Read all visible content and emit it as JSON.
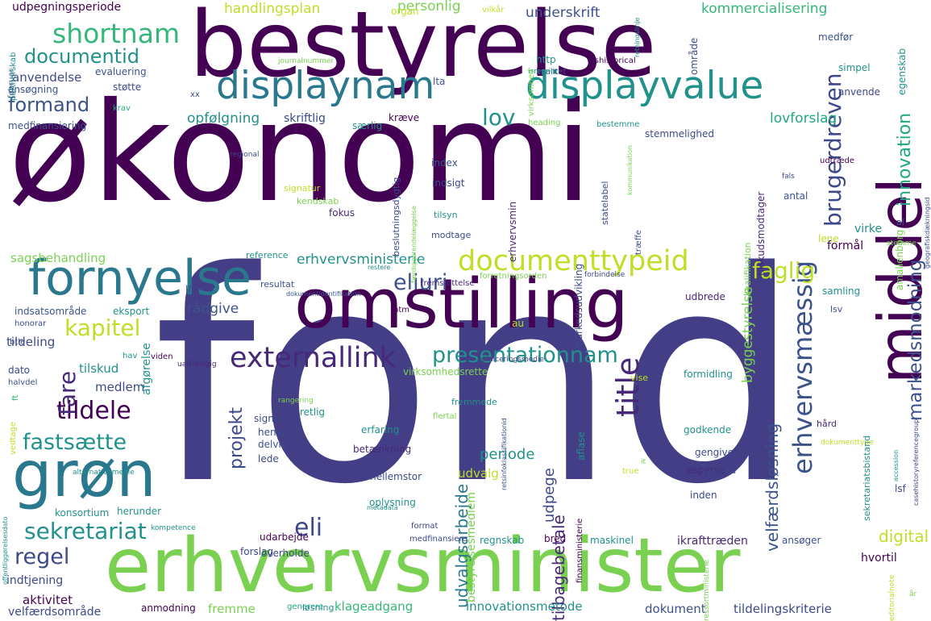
{
  "words": [
    {
      "text": "økonomi",
      "color": "#440154"
    },
    {
      "text": "fond",
      "color": "#433e85"
    },
    {
      "text": "bestyrelse",
      "color": "#440154"
    },
    {
      "text": "erhvervsminister",
      "color": "#7ad151"
    },
    {
      "text": "omstilling",
      "color": "#440154"
    },
    {
      "text": "middel",
      "color": "#440154"
    },
    {
      "text": "fornyelse",
      "color": "#2a788e"
    },
    {
      "text": "displaynam",
      "color": "#2a788e"
    },
    {
      "text": "displayvalue",
      "color": "#21918c"
    },
    {
      "text": "grøn",
      "color": "#2a788e"
    },
    {
      "text": "documenttypeid",
      "color": "#bddf26"
    },
    {
      "text": "erhvervsmæssig",
      "color": "#3b528b"
    },
    {
      "text": "externallink",
      "color": "#482878"
    },
    {
      "text": "presentationnam",
      "color": "#21918c"
    },
    {
      "text": "shortnam",
      "color": "#35b779"
    },
    {
      "text": "documentid",
      "color": "#21918c"
    },
    {
      "text": "kapitel",
      "color": "#bddf26"
    },
    {
      "text": "sekretariat",
      "color": "#21918c"
    },
    {
      "text": "fastsætte",
      "color": "#21918c"
    },
    {
      "text": "tildele",
      "color": "#440154"
    },
    {
      "text": "faglig",
      "color": "#bddf26"
    },
    {
      "text": "title",
      "color": "#482878"
    },
    {
      "text": "brugerdreven",
      "color": "#3e4989"
    },
    {
      "text": "markedsmodning",
      "color": "#3b528b"
    },
    {
      "text": "innovation",
      "color": "#22a884"
    },
    {
      "text": "eliuri",
      "color": "#3b528b"
    },
    {
      "text": "regel",
      "color": "#3e4989"
    },
    {
      "text": "formand",
      "color": "#3b528b"
    },
    {
      "text": "lov",
      "color": "#21918c"
    },
    {
      "text": "projekt",
      "color": "#3e4989"
    },
    {
      "text": "fare",
      "color": "#482878"
    },
    {
      "text": "eli",
      "color": "#3e4989"
    },
    {
      "text": "digital",
      "color": "#bddf26"
    },
    {
      "text": "velfærdsløsning",
      "color": "#3b528b"
    },
    {
      "text": "tilbagebetale",
      "color": "#482878"
    },
    {
      "text": "udvalgsarbejde",
      "color": "#2a788e"
    },
    {
      "text": "periode",
      "color": "#21918c"
    },
    {
      "text": "udpege",
      "color": "#3e4989"
    },
    {
      "text": "byggestyrelse",
      "color": "#7ad151"
    },
    {
      "text": "handlingsplan",
      "color": "#bddf26"
    },
    {
      "text": "personlig",
      "color": "#7ad151"
    },
    {
      "text": "underskrift",
      "color": "#3b528b"
    },
    {
      "text": "kommercialisering",
      "color": "#35b779"
    },
    {
      "text": "opfølgning",
      "color": "#21918c"
    },
    {
      "text": "lovforslag",
      "color": "#22a884"
    },
    {
      "text": "erhvervsministerie",
      "color": "#21918c"
    },
    {
      "text": "sagsbehandling",
      "color": "#7ad151"
    },
    {
      "text": "rådgive",
      "color": "#3b528b"
    },
    {
      "text": "udvalg",
      "color": "#bddf26"
    },
    {
      "text": "tildeling",
      "color": "#3e4989"
    },
    {
      "text": "medlem",
      "color": "#3e4989"
    },
    {
      "text": "tilskud",
      "color": "#21918c"
    },
    {
      "text": "aktivitet",
      "color": "#440154"
    },
    {
      "text": "anvendelse",
      "color": "#3e4989"
    },
    {
      "text": "udpegningsperiode",
      "color": "#440154"
    },
    {
      "text": "fremme",
      "color": "#7ad151"
    },
    {
      "text": "dokument",
      "color": "#3b528b"
    },
    {
      "text": "tildelingskriterie",
      "color": "#3e4989"
    },
    {
      "text": "innovationsmetode",
      "color": "#21918c"
    },
    {
      "text": "klageadgang",
      "color": "#35b779"
    },
    {
      "text": "velfærdsområde",
      "color": "#3e4989"
    },
    {
      "text": "indtjening",
      "color": "#3e4989"
    },
    {
      "text": "anmodning",
      "color": "#440154"
    },
    {
      "text": "forslag",
      "color": "#3e4989"
    },
    {
      "text": "regnskab",
      "color": "#21918c"
    },
    {
      "text": "maskinel",
      "color": "#21918c"
    },
    {
      "text": "ikrafttræden",
      "color": "#482878"
    },
    {
      "text": "ansøger",
      "color": "#3b528b"
    },
    {
      "text": "hvortil",
      "color": "#440154"
    },
    {
      "text": "konsortium",
      "color": "#21918c"
    },
    {
      "text": "herunder",
      "color": "#21918c"
    },
    {
      "text": "udarbejde",
      "color": "#440154"
    },
    {
      "text": "overholde",
      "color": "#3e4989"
    },
    {
      "text": "oplysning",
      "color": "#21918c"
    },
    {
      "text": "mellemstor",
      "color": "#3e4989"
    },
    {
      "text": "betænkning",
      "color": "#482878"
    },
    {
      "text": "erfaring",
      "color": "#21918c"
    },
    {
      "text": "signere",
      "color": "#3e4989"
    },
    {
      "text": "hense",
      "color": "#3e4989"
    },
    {
      "text": "delvis",
      "color": "#3b528b"
    },
    {
      "text": "lede",
      "color": "#3e4989"
    },
    {
      "text": "retlig",
      "color": "#21918c"
    },
    {
      "text": "virksomhedsrette",
      "color": "#7ad151"
    },
    {
      "text": "esperse",
      "color": "#482878"
    },
    {
      "text": "gengive",
      "color": "#3e4989"
    },
    {
      "text": "godkende",
      "color": "#21918c"
    },
    {
      "text": "formidling",
      "color": "#21918c"
    },
    {
      "text": "vise",
      "color": "#bddf26"
    },
    {
      "text": "samling",
      "color": "#21918c"
    },
    {
      "text": "lsv",
      "color": "#3b528b"
    },
    {
      "text": "formål",
      "color": "#440154"
    },
    {
      "text": "udbrede",
      "color": "#482878"
    },
    {
      "text": "htm",
      "color": "#440154"
    },
    {
      "text": "eksport",
      "color": "#21918c"
    },
    {
      "text": "indsatsområde",
      "color": "#3b528b"
    },
    {
      "text": "honorar",
      "color": "#3e4989"
    },
    {
      "text": "btle",
      "color": "#3e4989"
    },
    {
      "text": "hav",
      "color": "#21918c"
    },
    {
      "text": "viden",
      "color": "#440154"
    },
    {
      "text": "dato",
      "color": "#3e4989"
    },
    {
      "text": "halvdel",
      "color": "#3b528b"
    },
    {
      "text": "afgørelse",
      "color": "#21918c"
    },
    {
      "text": "lf",
      "color": "#3b528b"
    },
    {
      "text": "resultat",
      "color": "#3b528b"
    },
    {
      "text": "signatur",
      "color": "#bddf26"
    },
    {
      "text": "kendskab",
      "color": "#7ad151"
    },
    {
      "text": "indsigt",
      "color": "#3e4989"
    },
    {
      "text": "index",
      "color": "#3b528b"
    },
    {
      "text": "fokus",
      "color": "#482878"
    },
    {
      "text": "tilsyn",
      "color": "#21918c"
    },
    {
      "text": "modtage",
      "color": "#3e4989"
    },
    {
      "text": "virke",
      "color": "#21918c"
    },
    {
      "text": "antal",
      "color": "#3b528b"
    },
    {
      "text": "lene",
      "color": "#bddf26"
    },
    {
      "text": "stemmelighed",
      "color": "#3e4989"
    },
    {
      "text": "bestemme",
      "color": "#21918c"
    },
    {
      "text": "heading",
      "color": "#7ad151"
    },
    {
      "text": "særlig",
      "color": "#21918c"
    },
    {
      "text": "kræve",
      "color": "#440154"
    },
    {
      "text": "skriftlig",
      "color": "#3e4989"
    },
    {
      "text": "http",
      "color": "#21918c"
    },
    {
      "text": "kvalitet",
      "color": "#3e4989"
    },
    {
      "text": "lta",
      "color": "#3b528b"
    },
    {
      "text": "støtte",
      "color": "#3e4989"
    },
    {
      "text": "evaluering",
      "color": "#3b528b"
    },
    {
      "text": "ansøgning",
      "color": "#3b528b"
    },
    {
      "text": "krav",
      "color": "#22a884"
    },
    {
      "text": "medfinansiering",
      "color": "#3b528b"
    },
    {
      "text": "organ",
      "color": "#bddf26"
    },
    {
      "text": "vilkår",
      "color": "#bddf26"
    },
    {
      "text": "februar",
      "color": "#3e4989"
    },
    {
      "text": "medfør",
      "color": "#3b528b"
    },
    {
      "text": "simpel",
      "color": "#21918c"
    },
    {
      "text": "anvende",
      "color": "#3e4989"
    },
    {
      "text": "område",
      "color": "#3e4989"
    },
    {
      "text": "xx",
      "color": "#3e4989"
    },
    {
      "text": "ishistorical",
      "color": "#440154"
    },
    {
      "text": "journalnummer",
      "color": "#7ad151"
    },
    {
      "text": "isreprint",
      "color": "#21918c"
    },
    {
      "text": "udtræde",
      "color": "#440154"
    },
    {
      "text": "fals",
      "color": "#3e4989"
    },
    {
      "text": "al",
      "color": "#3b528b"
    },
    {
      "text": "stemme",
      "color": "#7ad151"
    },
    {
      "text": "regional",
      "color": "#3e4989"
    },
    {
      "text": "reference",
      "color": "#21918c"
    },
    {
      "text": "restere",
      "color": "#21918c"
    },
    {
      "text": "forretningsorden",
      "color": "#7ad151"
    },
    {
      "text": "forbindelse",
      "color": "#3e4989"
    },
    {
      "text": "fremsættelse",
      "color": "#482878"
    },
    {
      "text": "dokumentidentifikation",
      "color": "#3b528b"
    },
    {
      "text": "au",
      "color": "#bddf26"
    },
    {
      "text": "fremmede",
      "color": "#21918c"
    },
    {
      "text": "flertal",
      "color": "#7ad151"
    },
    {
      "text": "rangering",
      "color": "#7ad151"
    },
    {
      "text": "publiceringsmedie",
      "color": "#3e4989"
    },
    {
      "text": "uafhængig",
      "color": "#482878"
    },
    {
      "text": "ft",
      "color": "#35b779"
    },
    {
      "text": "vedtage",
      "color": "#bddf26"
    },
    {
      "text": "alternativemedie",
      "color": "#21918c"
    },
    {
      "text": "metadata",
      "color": "#21918c"
    },
    {
      "text": "kompetence",
      "color": "#21918c"
    },
    {
      "text": "format",
      "color": "#3e4989"
    },
    {
      "text": "medfinansiere",
      "color": "#3e4989"
    },
    {
      "text": "true",
      "color": "#bddf26"
    },
    {
      "text": "it",
      "color": "#7ad151"
    },
    {
      "text": "sundhed",
      "color": "#3e4989"
    },
    {
      "text": "bestyrelsesmedlem",
      "color": "#7ad151"
    },
    {
      "text": "finansministerie",
      "color": "#440154"
    },
    {
      "text": "bred",
      "color": "#440154"
    },
    {
      "text": "hård",
      "color": "#482878"
    },
    {
      "text": "dokumenttype",
      "color": "#bddf26"
    },
    {
      "text": "lsf",
      "color": "#3e4989"
    },
    {
      "text": "inden",
      "color": "#3e4989"
    },
    {
      "text": "generere",
      "color": "#22a884"
    },
    {
      "text": "løsning",
      "color": "#21918c"
    },
    {
      "text": "år",
      "color": "#7ad151"
    },
    {
      "text": "aflase",
      "color": "#21918c"
    },
    {
      "text": "træffe",
      "color": "#3b528b"
    },
    {
      "text": "statelabel",
      "color": "#3e4989"
    },
    {
      "text": "virksomhed",
      "color": "#7ad151"
    },
    {
      "text": "egenskab",
      "color": "#21918c"
    },
    {
      "text": "amalienborg",
      "color": "#7ad151"
    },
    {
      "text": "beslutningsdygtig",
      "color": "#3e4989"
    },
    {
      "text": "erhvervsmin",
      "color": "#482878"
    },
    {
      "text": "markedsudvikling",
      "color": "#3e4989"
    },
    {
      "text": "kvalifikation",
      "color": "#7ad151"
    },
    {
      "text": "tilskudsmodtager",
      "color": "#482878"
    },
    {
      "text": "sekretariatsbistand",
      "color": "#21918c"
    },
    {
      "text": "partnerskab",
      "color": "#21918c"
    },
    {
      "text": "retningslinje",
      "color": "#21918c"
    },
    {
      "text": "editorialnote",
      "color": "#bddf26"
    },
    {
      "text": "ressortministerie",
      "color": "#7ad151"
    },
    {
      "text": "accession",
      "color": "#21918c"
    },
    {
      "text": "casehistoryreferencegroup",
      "color": "#3e4989"
    },
    {
      "text": "offentliggørelsesdato",
      "color": "#21918c"
    },
    {
      "text": "geografiskdækningsid",
      "color": "#3b528b"
    },
    {
      "text": "retsinfoklassifikationid",
      "color": "#3b528b"
    },
    {
      "text": "færdiggørendelæggelse",
      "color": "#7ad151"
    },
    {
      "text": "kommunikation",
      "color": "#7ad151"
    },
    {
      "text": "bidrage",
      "color": "#3e4989"
    }
  ]
}
